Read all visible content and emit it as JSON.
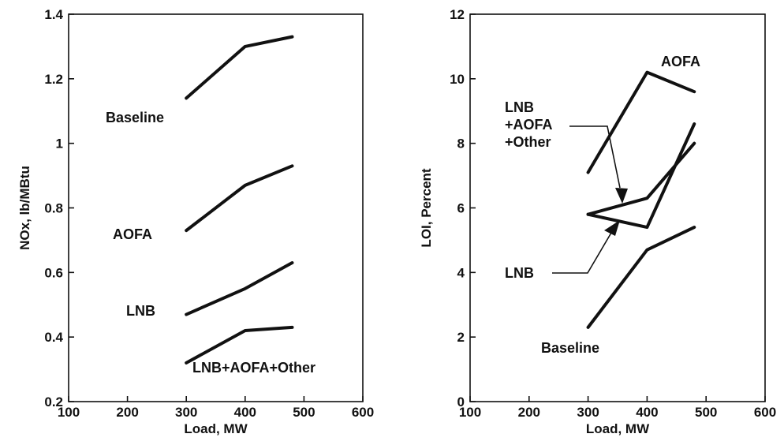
{
  "chart_data": [
    {
      "type": "line",
      "title": "",
      "xlabel": "Load, MW",
      "ylabel": "NOx, lb/MBtu",
      "xlim": [
        100,
        600
      ],
      "ylim": [
        0.2,
        1.4
      ],
      "xticks": [
        100,
        200,
        300,
        400,
        500,
        600
      ],
      "yticks": [
        0.2,
        0.4,
        0.6,
        0.8,
        1,
        1.2,
        1.4
      ],
      "xtick_labels": [
        "100",
        "200",
        "300",
        "400",
        "500",
        "600"
      ],
      "ytick_labels": [
        "0.2",
        "0.4",
        "0.6",
        "0.8",
        "1",
        "1.2",
        "1.4"
      ],
      "grid": false,
      "series": [
        {
          "name": "Baseline",
          "x": [
            300,
            400,
            480
          ],
          "y": [
            1.14,
            1.3,
            1.33
          ]
        },
        {
          "name": "AOFA",
          "x": [
            300,
            400,
            480
          ],
          "y": [
            0.73,
            0.87,
            0.93
          ]
        },
        {
          "name": "LNB",
          "x": [
            300,
            400,
            480
          ],
          "y": [
            0.47,
            0.55,
            0.63
          ]
        },
        {
          "name": "LNB+AOFA+Other",
          "x": [
            300,
            400,
            480
          ],
          "y": [
            0.32,
            0.42,
            0.43
          ]
        }
      ]
    },
    {
      "type": "line",
      "title": "",
      "xlabel": "Load, MW",
      "ylabel": "LOI, Percent",
      "xlim": [
        100,
        600
      ],
      "ylim": [
        0,
        12
      ],
      "xticks": [
        100,
        200,
        300,
        400,
        500,
        600
      ],
      "yticks": [
        0,
        2,
        4,
        6,
        8,
        10,
        12
      ],
      "xtick_labels": [
        "100",
        "200",
        "300",
        "400",
        "500",
        "600"
      ],
      "ytick_labels": [
        "0",
        "2",
        "4",
        "6",
        "8",
        "10",
        "12"
      ],
      "grid": false,
      "series": [
        {
          "name": "AOFA",
          "x": [
            300,
            400,
            480
          ],
          "y": [
            7.1,
            10.2,
            9.6
          ]
        },
        {
          "name": "LNB +AOFA +Other",
          "x": [
            300,
            400,
            480
          ],
          "y": [
            5.8,
            6.3,
            8.0
          ]
        },
        {
          "name": "LNB",
          "x": [
            300,
            400,
            480
          ],
          "y": [
            5.8,
            5.4,
            8.6
          ]
        },
        {
          "name": "Baseline",
          "x": [
            300,
            400,
            480
          ],
          "y": [
            2.3,
            4.7,
            5.4
          ]
        }
      ]
    }
  ]
}
